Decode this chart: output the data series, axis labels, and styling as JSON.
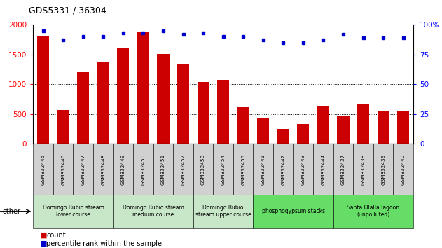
{
  "title": "GDS5331 / 36304",
  "samples": [
    "GSM832445",
    "GSM832446",
    "GSM832447",
    "GSM832448",
    "GSM832449",
    "GSM832450",
    "GSM832451",
    "GSM832452",
    "GSM832453",
    "GSM832454",
    "GSM832455",
    "GSM832441",
    "GSM832442",
    "GSM832443",
    "GSM832444",
    "GSM832437",
    "GSM832438",
    "GSM832439",
    "GSM832440"
  ],
  "counts": [
    1800,
    570,
    1210,
    1370,
    1600,
    1880,
    1510,
    1340,
    1040,
    1070,
    610,
    430,
    250,
    330,
    640,
    460,
    660,
    540,
    540
  ],
  "percentiles": [
    95,
    87,
    90,
    90,
    93,
    93,
    95,
    92,
    93,
    90,
    90,
    87,
    85,
    85,
    87,
    92,
    89,
    89,
    89
  ],
  "bar_color": "#cc0000",
  "dot_color": "#0000cc",
  "ylim_left": [
    0,
    2000
  ],
  "ylim_right": [
    0,
    100
  ],
  "yticks_left": [
    0,
    500,
    1000,
    1500,
    2000
  ],
  "yticks_right": [
    0,
    25,
    50,
    75,
    100
  ],
  "ytick_labels_right": [
    "0",
    "25",
    "50",
    "75",
    "100%"
  ],
  "gridlines": [
    500,
    1000,
    1500
  ],
  "groups": [
    {
      "label": "Domingo Rubio stream\nlower course",
      "start": 0,
      "end": 4,
      "color": "#c8e6c8"
    },
    {
      "label": "Domingo Rubio stream\nmedium course",
      "start": 4,
      "end": 8,
      "color": "#c8e6c8"
    },
    {
      "label": "Domingo Rubio\nstream upper course",
      "start": 8,
      "end": 11,
      "color": "#c8e6c8"
    },
    {
      "label": "phosphogypsum stacks",
      "start": 11,
      "end": 15,
      "color": "#66dd66"
    },
    {
      "label": "Santa Olalla lagoon\n(unpolluted)",
      "start": 15,
      "end": 19,
      "color": "#66dd66"
    }
  ],
  "other_label": "other",
  "legend_count": "count",
  "legend_percentile": "percentile rank within the sample",
  "bg_color": "#ffffff",
  "sample_bg_color": "#d0d0d0"
}
